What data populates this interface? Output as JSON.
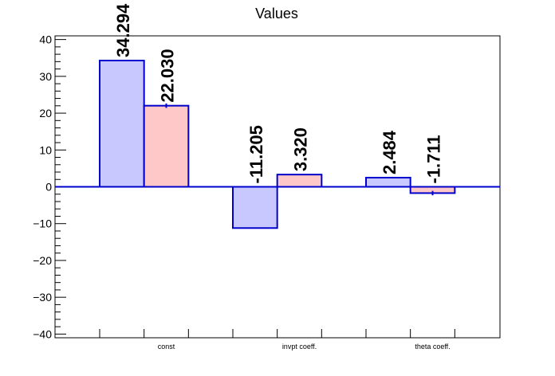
{
  "chart_data": {
    "type": "bar",
    "title": "Values",
    "categories": [
      "const",
      "invpt coeff.",
      "theta coeff."
    ],
    "series": [
      {
        "values": [
          34.294,
          -11.205,
          2.484
        ],
        "labels": [
          "34.294",
          "-11.205",
          "2.484"
        ],
        "color": "#c8c8ff",
        "stroke": "#0000cc"
      },
      {
        "values": [
          22.03,
          3.32,
          -1.711
        ],
        "labels": [
          "22.030",
          "3.320",
          "-1.711"
        ],
        "color": "#ffc8c8",
        "stroke": "#0000cc",
        "errors": [
          0.6,
          0.0,
          0.6
        ]
      }
    ],
    "ylim": [
      -41,
      41
    ],
    "yticks": [
      -40,
      -30,
      -20,
      -10,
      0,
      10,
      20,
      30,
      40
    ],
    "ytick_labels": [
      "−40",
      "−30",
      "−20",
      "−10",
      "0",
      "10",
      "20",
      "30",
      "40"
    ],
    "grid": false,
    "xlabel": "",
    "ylabel": ""
  },
  "colors": {
    "axis": "#000000",
    "zero_line": "#0000cc",
    "text": "#000000"
  }
}
